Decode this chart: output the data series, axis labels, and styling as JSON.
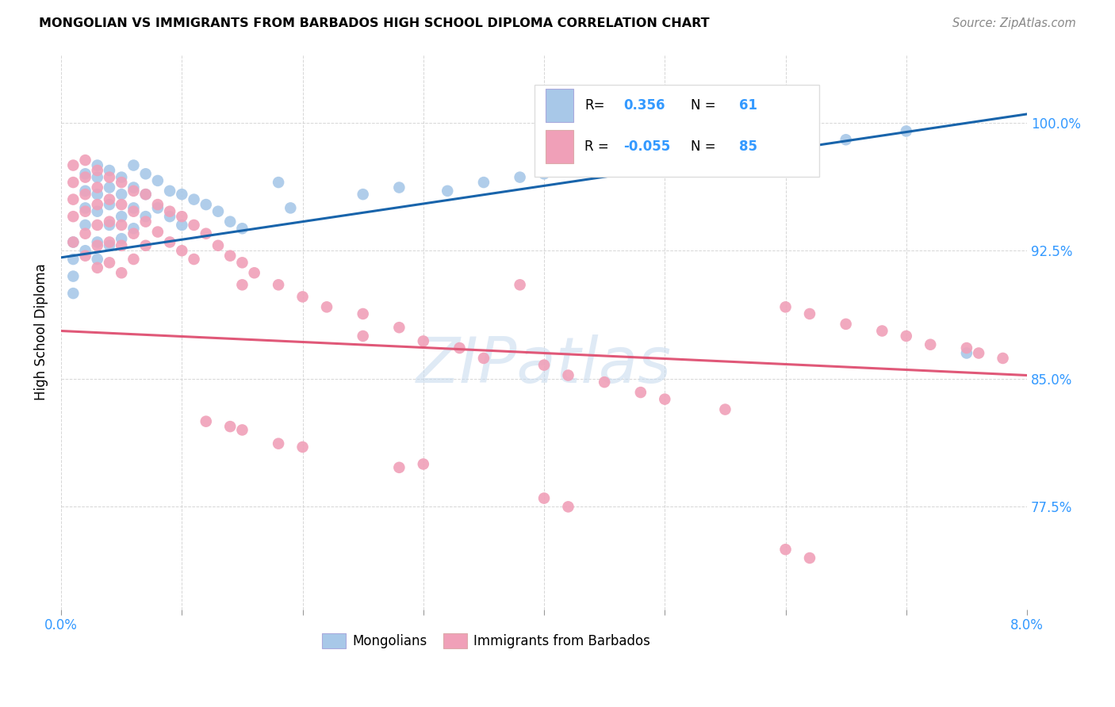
{
  "title": "MONGOLIAN VS IMMIGRANTS FROM BARBADOS HIGH SCHOOL DIPLOMA CORRELATION CHART",
  "source": "Source: ZipAtlas.com",
  "ylabel": "High School Diploma",
  "ytick_vals": [
    0.775,
    0.85,
    0.925,
    1.0
  ],
  "ytick_labels": [
    "77.5%",
    "85.0%",
    "92.5%",
    "100.0%"
  ],
  "xlim": [
    0.0,
    0.08
  ],
  "ylim": [
    0.715,
    1.04
  ],
  "mongolians_color": "#a8c8e8",
  "barbados_color": "#f0a0b8",
  "line_blue": "#1864ab",
  "line_pink": "#e05878",
  "blue_line_x0": 0.0,
  "blue_line_y0": 0.921,
  "blue_line_x1": 0.08,
  "blue_line_y1": 1.005,
  "pink_line_x0": 0.0,
  "pink_line_y0": 0.878,
  "pink_line_x1": 0.08,
  "pink_line_y1": 0.852,
  "mongolians_x": [
    0.001,
    0.001,
    0.001,
    0.001,
    0.002,
    0.002,
    0.002,
    0.002,
    0.002,
    0.003,
    0.003,
    0.003,
    0.003,
    0.003,
    0.003,
    0.004,
    0.004,
    0.004,
    0.004,
    0.004,
    0.005,
    0.005,
    0.005,
    0.005,
    0.006,
    0.006,
    0.006,
    0.006,
    0.007,
    0.007,
    0.007,
    0.008,
    0.008,
    0.009,
    0.009,
    0.01,
    0.01,
    0.011,
    0.012,
    0.013,
    0.014,
    0.015,
    0.018,
    0.019,
    0.025,
    0.028,
    0.032,
    0.035,
    0.038,
    0.04,
    0.042,
    0.045,
    0.048,
    0.05,
    0.055,
    0.06,
    0.062,
    0.065,
    0.07,
    0.075
  ],
  "mongolians_y": [
    0.93,
    0.92,
    0.91,
    0.9,
    0.97,
    0.96,
    0.95,
    0.94,
    0.925,
    0.975,
    0.968,
    0.958,
    0.948,
    0.93,
    0.92,
    0.972,
    0.962,
    0.952,
    0.94,
    0.928,
    0.968,
    0.958,
    0.945,
    0.932,
    0.975,
    0.962,
    0.95,
    0.938,
    0.97,
    0.958,
    0.945,
    0.966,
    0.95,
    0.96,
    0.945,
    0.958,
    0.94,
    0.955,
    0.952,
    0.948,
    0.942,
    0.938,
    0.965,
    0.95,
    0.958,
    0.962,
    0.96,
    0.965,
    0.968,
    0.97,
    0.972,
    0.975,
    0.978,
    0.98,
    0.982,
    0.985,
    0.988,
    0.99,
    0.995,
    0.865
  ],
  "barbados_x": [
    0.001,
    0.001,
    0.001,
    0.001,
    0.001,
    0.002,
    0.002,
    0.002,
    0.002,
    0.002,
    0.002,
    0.003,
    0.003,
    0.003,
    0.003,
    0.003,
    0.003,
    0.004,
    0.004,
    0.004,
    0.004,
    0.004,
    0.005,
    0.005,
    0.005,
    0.005,
    0.005,
    0.006,
    0.006,
    0.006,
    0.006,
    0.007,
    0.007,
    0.007,
    0.008,
    0.008,
    0.009,
    0.009,
    0.01,
    0.01,
    0.011,
    0.011,
    0.012,
    0.013,
    0.014,
    0.015,
    0.015,
    0.016,
    0.018,
    0.02,
    0.022,
    0.025,
    0.025,
    0.028,
    0.03,
    0.033,
    0.035,
    0.038,
    0.04,
    0.042,
    0.045,
    0.048,
    0.05,
    0.055,
    0.06,
    0.062,
    0.065,
    0.068,
    0.07,
    0.072,
    0.075,
    0.076,
    0.078,
    0.06,
    0.062,
    0.04,
    0.042,
    0.03,
    0.028,
    0.02,
    0.018,
    0.015,
    0.014,
    0.012
  ],
  "barbados_y": [
    0.975,
    0.965,
    0.955,
    0.945,
    0.93,
    0.978,
    0.968,
    0.958,
    0.948,
    0.935,
    0.922,
    0.972,
    0.962,
    0.952,
    0.94,
    0.928,
    0.915,
    0.968,
    0.955,
    0.942,
    0.93,
    0.918,
    0.965,
    0.952,
    0.94,
    0.928,
    0.912,
    0.96,
    0.948,
    0.935,
    0.92,
    0.958,
    0.942,
    0.928,
    0.952,
    0.936,
    0.948,
    0.93,
    0.945,
    0.925,
    0.94,
    0.92,
    0.935,
    0.928,
    0.922,
    0.918,
    0.905,
    0.912,
    0.905,
    0.898,
    0.892,
    0.888,
    0.875,
    0.88,
    0.872,
    0.868,
    0.862,
    0.905,
    0.858,
    0.852,
    0.848,
    0.842,
    0.838,
    0.832,
    0.892,
    0.888,
    0.882,
    0.878,
    0.875,
    0.87,
    0.868,
    0.865,
    0.862,
    0.75,
    0.745,
    0.78,
    0.775,
    0.8,
    0.798,
    0.81,
    0.812,
    0.82,
    0.822,
    0.825
  ]
}
